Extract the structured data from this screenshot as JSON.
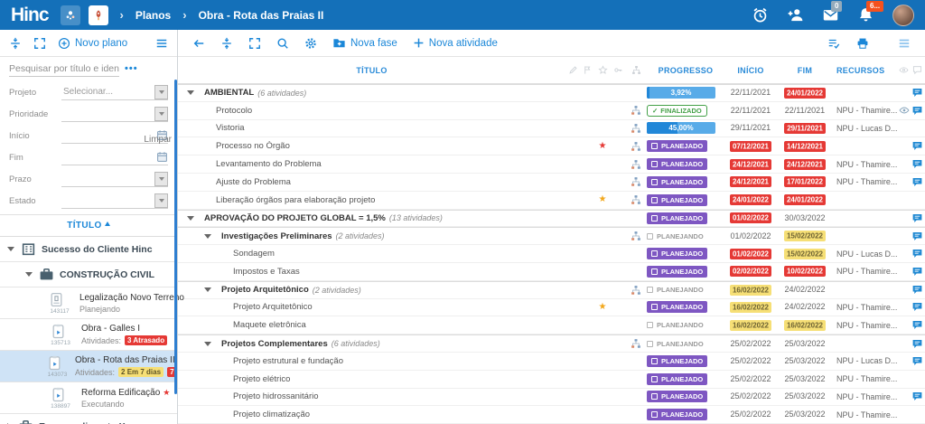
{
  "colors": {
    "header_bg": "#1470b9",
    "accent": "#1b87d8",
    "red": "#e53935",
    "yellow": "#f6df76",
    "purple": "#7e57c2",
    "green": "#43a047",
    "selected_row": "#cfe3f6",
    "orange_badge": "#f4511e"
  },
  "header": {
    "logo": "Hinc",
    "breadcrumb_sep": "›",
    "breadcrumb": [
      "Planos",
      "Obra - Rota das Praias II"
    ],
    "mail_badge": "0",
    "bell_badge": "6..."
  },
  "sidebar": {
    "new_plan": "Novo plano",
    "search_placeholder": "Pesquisar por título e identi",
    "more": "•••",
    "clear": "Limpar",
    "column_title": "TÍTULO",
    "filters": [
      {
        "label": "Projeto",
        "type": "select",
        "value": "Selecionar..."
      },
      {
        "label": "Prioridade",
        "type": "select",
        "value": ""
      },
      {
        "label": "Início",
        "type": "date",
        "value": ""
      },
      {
        "label": "Fim",
        "type": "date",
        "value": ""
      },
      {
        "label": "Prazo",
        "type": "select",
        "value": ""
      },
      {
        "label": "Estado",
        "type": "select",
        "value": ""
      }
    ],
    "tree": [
      {
        "kind": "group",
        "level": 0,
        "icon": "building",
        "caret": "down",
        "label": "Sucesso do Cliente Hinc"
      },
      {
        "kind": "group",
        "level": 1,
        "icon": "briefcase",
        "caret": "down",
        "label": "CONSTRUÇÃO CIVIL"
      },
      {
        "kind": "item",
        "id": "143117",
        "icon": "doc",
        "title": "Legalização Novo Terreno",
        "star": false,
        "subtitle": "Planejando",
        "badges": [],
        "selected": false
      },
      {
        "kind": "item",
        "id": "135713",
        "icon": "clipboard",
        "title": "Obra - Galles I",
        "star": false,
        "subtitle": "Atividades:",
        "badges": [
          {
            "text": "3 Atrasado",
            "type": "red"
          }
        ],
        "selected": false
      },
      {
        "kind": "item",
        "id": "143073",
        "icon": "clipboard",
        "title": "Obra - Rota das Praias II",
        "star": false,
        "subtitle": "Atividades:",
        "badges": [
          {
            "text": "2 Em 7 dias",
            "type": "yellow"
          },
          {
            "text": "7 Atrasado",
            "type": "red"
          }
        ],
        "selected": true
      },
      {
        "kind": "item",
        "id": "138897",
        "icon": "clipboard",
        "title": "Reforma Edificação",
        "star": true,
        "subtitle": "Executando",
        "badges": [],
        "selected": false
      },
      {
        "kind": "group",
        "level": 0,
        "icon": "briefcase",
        "caret": "right",
        "label": "Empreendimento X"
      }
    ]
  },
  "toolbar": {
    "nova_fase": "Nova fase",
    "nova_atividade": "Nova atividade"
  },
  "table": {
    "headers": {
      "titulo": "TÍTULO",
      "progresso": "PROGRESSO",
      "inicio": "INÍCIO",
      "fim": "FIM",
      "recursos": "RECURSOS"
    },
    "rows": [
      {
        "level": 0,
        "caret": true,
        "phase": true,
        "title": "AMBIENTAL",
        "count": "(6 atividades)",
        "star": null,
        "hier": false,
        "status": {
          "kind": "progress",
          "label": "3,92%",
          "pct": 4
        },
        "inicio": {
          "t": "22/11/2021",
          "s": "plain"
        },
        "fim": {
          "t": "24/01/2022",
          "s": "red"
        },
        "rec": "",
        "eye": false,
        "chat": true
      },
      {
        "level": 1,
        "caret": false,
        "phase": false,
        "title": "Protocolo",
        "count": "",
        "star": null,
        "hier": true,
        "status": {
          "kind": "finalizado",
          "label": "FINALIZADO"
        },
        "inicio": {
          "t": "22/11/2021",
          "s": "plain"
        },
        "fim": {
          "t": "22/11/2021",
          "s": "plain"
        },
        "rec": "NPU - Thamire...",
        "eye": true,
        "chat": true
      },
      {
        "level": 1,
        "caret": false,
        "phase": false,
        "title": "Vistoria",
        "count": "",
        "star": null,
        "hier": true,
        "status": {
          "kind": "progress",
          "label": "45,00%",
          "pct": 45
        },
        "inicio": {
          "t": "29/11/2021",
          "s": "plain"
        },
        "fim": {
          "t": "29/11/2021",
          "s": "red"
        },
        "rec": "NPU - Lucas D...",
        "eye": false,
        "chat": false
      },
      {
        "level": 1,
        "caret": false,
        "phase": false,
        "title": "Processo no Órgão",
        "count": "",
        "star": "red",
        "hier": true,
        "status": {
          "kind": "planejado",
          "label": "PLANEJADO"
        },
        "inicio": {
          "t": "07/12/2021",
          "s": "red"
        },
        "fim": {
          "t": "14/12/2021",
          "s": "red"
        },
        "rec": "",
        "eye": false,
        "chat": true
      },
      {
        "level": 1,
        "caret": false,
        "phase": false,
        "title": "Levantamento do Problema",
        "count": "",
        "star": null,
        "hier": true,
        "status": {
          "kind": "planejado",
          "label": "PLANEJADO"
        },
        "inicio": {
          "t": "24/12/2021",
          "s": "red"
        },
        "fim": {
          "t": "24/12/2021",
          "s": "red"
        },
        "rec": "NPU - Thamire...",
        "eye": false,
        "chat": true
      },
      {
        "level": 1,
        "caret": false,
        "phase": false,
        "title": "Ajuste do Problema",
        "count": "",
        "star": null,
        "hier": true,
        "status": {
          "kind": "planejado",
          "label": "PLANEJADO"
        },
        "inicio": {
          "t": "24/12/2021",
          "s": "red"
        },
        "fim": {
          "t": "17/01/2022",
          "s": "red"
        },
        "rec": "NPU - Thamire...",
        "eye": false,
        "chat": true
      },
      {
        "level": 1,
        "caret": false,
        "phase": false,
        "title": "Liberação órgãos para elaboração projeto",
        "count": "",
        "star": "yellow",
        "hier": true,
        "status": {
          "kind": "planejado",
          "label": "PLANEJADO"
        },
        "inicio": {
          "t": "24/01/2022",
          "s": "red"
        },
        "fim": {
          "t": "24/01/2022",
          "s": "red"
        },
        "rec": "",
        "eye": false,
        "chat": false
      },
      {
        "level": 0,
        "caret": true,
        "phase": true,
        "title": "APROVAÇÃO DO PROJETO GLOBAL = 1,5%",
        "count": "(13 atividades)",
        "star": null,
        "hier": false,
        "status": {
          "kind": "planejado",
          "label": "PLANEJADO"
        },
        "inicio": {
          "t": "01/02/2022",
          "s": "red"
        },
        "fim": {
          "t": "30/03/2022",
          "s": "plain"
        },
        "rec": "",
        "eye": false,
        "chat": true
      },
      {
        "level": 1,
        "caret": true,
        "phase": true,
        "title": "Investigações Preliminares",
        "count": "(2 atividades)",
        "star": null,
        "hier": true,
        "status": {
          "kind": "planejando",
          "label": "PLANEJANDO"
        },
        "inicio": {
          "t": "01/02/2022",
          "s": "plain"
        },
        "fim": {
          "t": "15/02/2022",
          "s": "yellow"
        },
        "rec": "",
        "eye": false,
        "chat": true
      },
      {
        "level": 2,
        "caret": false,
        "phase": false,
        "title": "Sondagem",
        "count": "",
        "star": null,
        "hier": false,
        "status": {
          "kind": "planejado",
          "label": "PLANEJADO"
        },
        "inicio": {
          "t": "01/02/2022",
          "s": "red"
        },
        "fim": {
          "t": "15/02/2022",
          "s": "yellow"
        },
        "rec": "NPU - Lucas D...",
        "eye": false,
        "chat": true
      },
      {
        "level": 2,
        "caret": false,
        "phase": false,
        "title": "Impostos e Taxas",
        "count": "",
        "star": null,
        "hier": false,
        "status": {
          "kind": "planejado",
          "label": "PLANEJADO"
        },
        "inicio": {
          "t": "02/02/2022",
          "s": "red"
        },
        "fim": {
          "t": "10/02/2022",
          "s": "red"
        },
        "rec": "NPU - Thamire...",
        "eye": false,
        "chat": true
      },
      {
        "level": 1,
        "caret": true,
        "phase": true,
        "title": "Projeto Arquitetônico",
        "count": "(2 atividades)",
        "star": null,
        "hier": true,
        "status": {
          "kind": "planejando",
          "label": "PLANEJANDO"
        },
        "inicio": {
          "t": "16/02/2022",
          "s": "yellow"
        },
        "fim": {
          "t": "24/02/2022",
          "s": "plain"
        },
        "rec": "",
        "eye": false,
        "chat": true
      },
      {
        "level": 2,
        "caret": false,
        "phase": false,
        "title": "Projeto Arquitetônico",
        "count": "",
        "star": "yellow",
        "hier": false,
        "status": {
          "kind": "planejado",
          "label": "PLANEJADO"
        },
        "inicio": {
          "t": "16/02/2022",
          "s": "yellow"
        },
        "fim": {
          "t": "24/02/2022",
          "s": "plain"
        },
        "rec": "NPU - Thamire...",
        "eye": false,
        "chat": true
      },
      {
        "level": 2,
        "caret": false,
        "phase": false,
        "title": "Maquete eletrônica",
        "count": "",
        "star": null,
        "hier": false,
        "status": {
          "kind": "planejando",
          "label": "PLANEJANDO"
        },
        "inicio": {
          "t": "16/02/2022",
          "s": "yellow"
        },
        "fim": {
          "t": "16/02/2022",
          "s": "yellow"
        },
        "rec": "NPU - Thamire...",
        "eye": false,
        "chat": true
      },
      {
        "level": 1,
        "caret": true,
        "phase": true,
        "title": "Projetos Complementares",
        "count": "(6 atividades)",
        "star": null,
        "hier": true,
        "status": {
          "kind": "planejando",
          "label": "PLANEJANDO"
        },
        "inicio": {
          "t": "25/02/2022",
          "s": "plain"
        },
        "fim": {
          "t": "25/03/2022",
          "s": "plain"
        },
        "rec": "",
        "eye": false,
        "chat": true
      },
      {
        "level": 2,
        "caret": false,
        "phase": false,
        "title": "Projeto estrutural e fundação",
        "count": "",
        "star": null,
        "hier": false,
        "status": {
          "kind": "planejado",
          "label": "PLANEJADO"
        },
        "inicio": {
          "t": "25/02/2022",
          "s": "plain"
        },
        "fim": {
          "t": "25/03/2022",
          "s": "plain"
        },
        "rec": "NPU - Lucas D...",
        "eye": false,
        "chat": true
      },
      {
        "level": 2,
        "caret": false,
        "phase": false,
        "title": "Projeto elétrico",
        "count": "",
        "star": null,
        "hier": false,
        "status": {
          "kind": "planejado",
          "label": "PLANEJADO"
        },
        "inicio": {
          "t": "25/02/2022",
          "s": "plain"
        },
        "fim": {
          "t": "25/03/2022",
          "s": "plain"
        },
        "rec": "NPU - Thamire...",
        "eye": false,
        "chat": false
      },
      {
        "level": 2,
        "caret": false,
        "phase": false,
        "title": "Projeto hidrossanitário",
        "count": "",
        "star": null,
        "hier": false,
        "status": {
          "kind": "planejado",
          "label": "PLANEJADO"
        },
        "inicio": {
          "t": "25/02/2022",
          "s": "plain"
        },
        "fim": {
          "t": "25/03/2022",
          "s": "plain"
        },
        "rec": "NPU - Thamire...",
        "eye": false,
        "chat": true
      },
      {
        "level": 2,
        "caret": false,
        "phase": false,
        "title": "Projeto climatização",
        "count": "",
        "star": null,
        "hier": false,
        "status": {
          "kind": "planejado",
          "label": "PLANEJADO"
        },
        "inicio": {
          "t": "25/02/2022",
          "s": "plain"
        },
        "fim": {
          "t": "25/03/2022",
          "s": "plain"
        },
        "rec": "NPU - Thamire...",
        "eye": false,
        "chat": false
      }
    ]
  }
}
